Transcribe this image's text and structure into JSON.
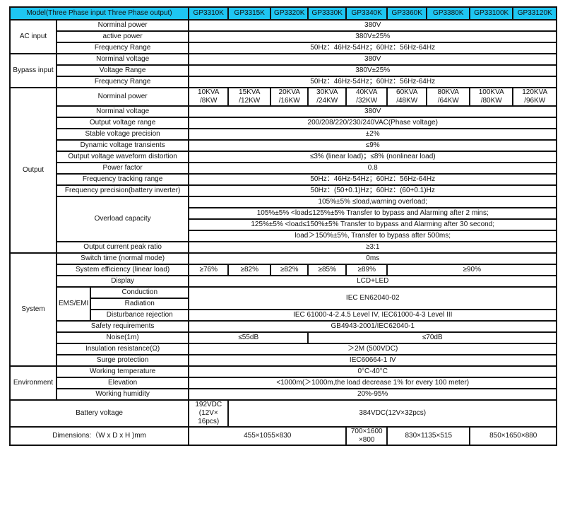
{
  "header": {
    "title": "Model(Three Phase input Three Phase output)",
    "models": [
      "GP3310K",
      "GP3315K",
      "GP3320K",
      "GP3330K",
      "GP3340K",
      "GP3360K",
      "GP3380K",
      "GP33100K",
      "GP33120K"
    ],
    "color": "#1ec6f2"
  },
  "sections": [
    {
      "name": "AC input",
      "rows": [
        {
          "cells": [
            {
              "text": "Norminal power",
              "colspan": 2
            },
            {
              "text": "380V",
              "colspan": 9
            }
          ]
        },
        {
          "cells": [
            {
              "text": "active power",
              "colspan": 2
            },
            {
              "text": "380V±25%",
              "colspan": 9
            }
          ]
        },
        {
          "cells": [
            {
              "text": "Frequency Range",
              "colspan": 2
            },
            {
              "text": "50Hz：46Hz-54Hz；60Hz：56Hz-64Hz",
              "colspan": 9
            }
          ]
        }
      ]
    },
    {
      "name": "Bypass  input",
      "rows": [
        {
          "cells": [
            {
              "text": "Norminal voltage",
              "colspan": 2
            },
            {
              "text": "380V",
              "colspan": 9
            }
          ]
        },
        {
          "cells": [
            {
              "text": "Voltage Range",
              "colspan": 2
            },
            {
              "text": "380V±25%",
              "colspan": 9
            }
          ]
        },
        {
          "cells": [
            {
              "text": "Frequency Range",
              "colspan": 2
            },
            {
              "text": "50Hz：46Hz-54Hz；60Hz：56Hz-64Hz",
              "colspan": 9
            }
          ]
        }
      ]
    },
    {
      "name": "Output",
      "rows": [
        {
          "cells": [
            {
              "text": "Norminal power",
              "colspan": 2
            },
            {
              "text": "10KVA\n/8KW"
            },
            {
              "text": "15KVA\n/12KW"
            },
            {
              "text": "20KVA\n/16KW"
            },
            {
              "text": "30KVA\n/24KW"
            },
            {
              "text": "40KVA\n/32KW"
            },
            {
              "text": "60KVA\n/48KW"
            },
            {
              "text": "80KVA\n/64KW"
            },
            {
              "text": "100KVA\n/80KW"
            },
            {
              "text": "120KVA\n/96KW"
            }
          ]
        },
        {
          "cells": [
            {
              "text": "Norminal voltage",
              "colspan": 2
            },
            {
              "text": "380V",
              "colspan": 9
            }
          ]
        },
        {
          "cells": [
            {
              "text": "Output voltage range",
              "colspan": 2
            },
            {
              "text": "200/208/220/230/240VAC(Phase voltage)",
              "colspan": 9
            }
          ]
        },
        {
          "cells": [
            {
              "text": "Stable voltage precision",
              "colspan": 2
            },
            {
              "text": "±2%",
              "colspan": 9
            }
          ]
        },
        {
          "cells": [
            {
              "text": "Dynamic voltage transients",
              "colspan": 2
            },
            {
              "text": "≤9%",
              "colspan": 9
            }
          ]
        },
        {
          "cells": [
            {
              "text": "Output voltage waveform distortion",
              "colspan": 2
            },
            {
              "text": "≤3% (linear load)；≤8% (nonlinear load)",
              "colspan": 9
            }
          ]
        },
        {
          "cells": [
            {
              "text": "Power factor",
              "colspan": 2
            },
            {
              "text": "0.8",
              "colspan": 9
            }
          ]
        },
        {
          "cells": [
            {
              "text": "Frequency tracking range",
              "colspan": 2
            },
            {
              "text": "50Hz：46Hz-54Hz；60Hz：56Hz-64Hz",
              "colspan": 9
            }
          ]
        },
        {
          "cells": [
            {
              "text": "Frequency precision(battery inverter)",
              "colspan": 2
            },
            {
              "text": "50Hz：(50+0.1)Hz；60Hz：(60+0.1)Hz",
              "colspan": 9
            }
          ]
        },
        {
          "cells": [
            {
              "text": "Overload capacity",
              "colspan": 2,
              "rowspan": 4
            },
            {
              "text": "105%±5% ≤load,warning overload;",
              "colspan": 9
            }
          ]
        },
        {
          "cells": [
            {
              "text": "105%±5% <load≤125%±5% Transfer to bypass and Alarming after 2 mins;",
              "colspan": 9
            }
          ]
        },
        {
          "cells": [
            {
              "text": "125%±5% <load≤150%±5% Transfer to bypass and Alarming after 30 second;",
              "colspan": 9
            }
          ]
        },
        {
          "cells": [
            {
              "text": "load＞150%±5%, Transfer to bypass after 500ms;",
              "colspan": 9
            }
          ]
        },
        {
          "cells": [
            {
              "text": "Output current peak ratio",
              "colspan": 2
            },
            {
              "text": "≥3:1",
              "colspan": 9
            }
          ]
        }
      ]
    },
    {
      "name": "System",
      "rows": [
        {
          "cells": [
            {
              "text": "Switch time (normal mode)",
              "colspan": 2
            },
            {
              "text": "0ms",
              "colspan": 9
            }
          ]
        },
        {
          "cells": [
            {
              "text": "System efficiency (linear load)",
              "colspan": 2
            },
            {
              "text": "≥76%"
            },
            {
              "text": "≥82%"
            },
            {
              "text": "≥82%"
            },
            {
              "text": "≥85%"
            },
            {
              "text": "≥89%"
            },
            {
              "text": "≥90%",
              "colspan": 4
            }
          ]
        },
        {
          "cells": [
            {
              "text": "Display",
              "colspan": 2
            },
            {
              "text": "LCD+LED",
              "colspan": 9
            }
          ]
        },
        {
          "cells": [
            {
              "text": "EMS/EMI",
              "rowspan": 3
            },
            {
              "text": "Conduction"
            },
            {
              "text": "IEC EN62040-02",
              "colspan": 9,
              "rowspan": 2
            }
          ]
        },
        {
          "cells": [
            {
              "text": "Radiation"
            }
          ]
        },
        {
          "cells": [
            {
              "text": "Disturbance rejection"
            },
            {
              "text": "IEC 61000-4-2.4.5 Level IV, IEC61000-4-3 Level III",
              "colspan": 9
            }
          ]
        },
        {
          "cells": [
            {
              "text": "Safety requirements",
              "colspan": 2
            },
            {
              "text": "GB4943-2001/IEC62040-1",
              "colspan": 9
            }
          ]
        },
        {
          "cells": [
            {
              "text": "Noise(1m)",
              "colspan": 2
            },
            {
              "text": "≤55dB",
              "colspan": 3
            },
            {
              "text": "≤70dB",
              "colspan": 6
            }
          ]
        },
        {
          "cells": [
            {
              "text": "Insulation resistance(Ω)",
              "colspan": 2
            },
            {
              "text": "＞2M (500VDC)",
              "colspan": 9
            }
          ]
        },
        {
          "cells": [
            {
              "text": "Surge protection",
              "colspan": 2
            },
            {
              "text": "IEC60664-1 IV",
              "colspan": 9
            }
          ]
        }
      ]
    },
    {
      "name": "Environment",
      "rows": [
        {
          "cells": [
            {
              "text": "Working temperature",
              "colspan": 2
            },
            {
              "text": "0°C-40°C",
              "colspan": 9
            }
          ]
        },
        {
          "cells": [
            {
              "text": "Elevation",
              "colspan": 2
            },
            {
              "text": "<1000m(＞1000m,the load decrease 1% for every 100 meter)",
              "colspan": 9
            }
          ]
        },
        {
          "cells": [
            {
              "text": "Working humidity",
              "colspan": 2
            },
            {
              "text": "20%-95%",
              "colspan": 9
            }
          ]
        }
      ]
    },
    {
      "name": "",
      "rows": [
        {
          "cells": [
            {
              "text": "Battery voltage",
              "colspan": 3
            },
            {
              "text": "192VDC\n(12V×\n16pcs)"
            },
            {
              "text": "384VDC(12V×32pcs)",
              "colspan": 8
            }
          ]
        },
        {
          "cells": [
            {
              "text": "Dimensions:（W x D x H )mm",
              "colspan": 3
            },
            {
              "text": "455×1055×830",
              "colspan": 4
            },
            {
              "text": "700×1600\n×800"
            },
            {
              "text": "830×1135×515",
              "colspan": 2
            },
            {
              "text": "850×1650×880",
              "colspan": 2
            }
          ]
        }
      ]
    }
  ]
}
